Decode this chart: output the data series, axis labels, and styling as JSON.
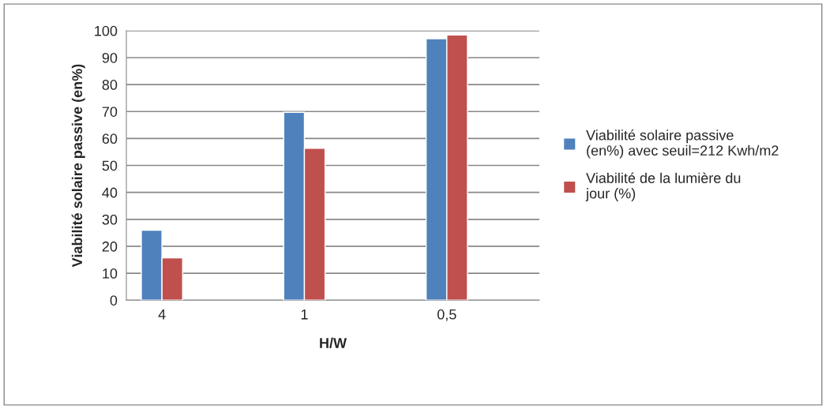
{
  "chart_data": {
    "type": "bar",
    "xlabel": "H/W",
    "ylabel": "Viabilité solaire passive (en%)",
    "categories": [
      "4",
      "1",
      "0,5"
    ],
    "series": [
      {
        "name": "Viabilité solaire passive (en%) avec seuil=212 Kwh/m2",
        "color": "#4f81bd",
        "values": [
          26,
          69.7,
          97
        ]
      },
      {
        "name": "Viabilité de la lumière du jour (%)",
        "color": "#c0504d",
        "values": [
          15.7,
          56.4,
          98.4
        ]
      }
    ],
    "ylim": [
      0,
      100
    ],
    "yticks": [
      0,
      10,
      20,
      30,
      40,
      50,
      60,
      70,
      80,
      90,
      100
    ],
    "grid": "y",
    "legend": "right"
  }
}
